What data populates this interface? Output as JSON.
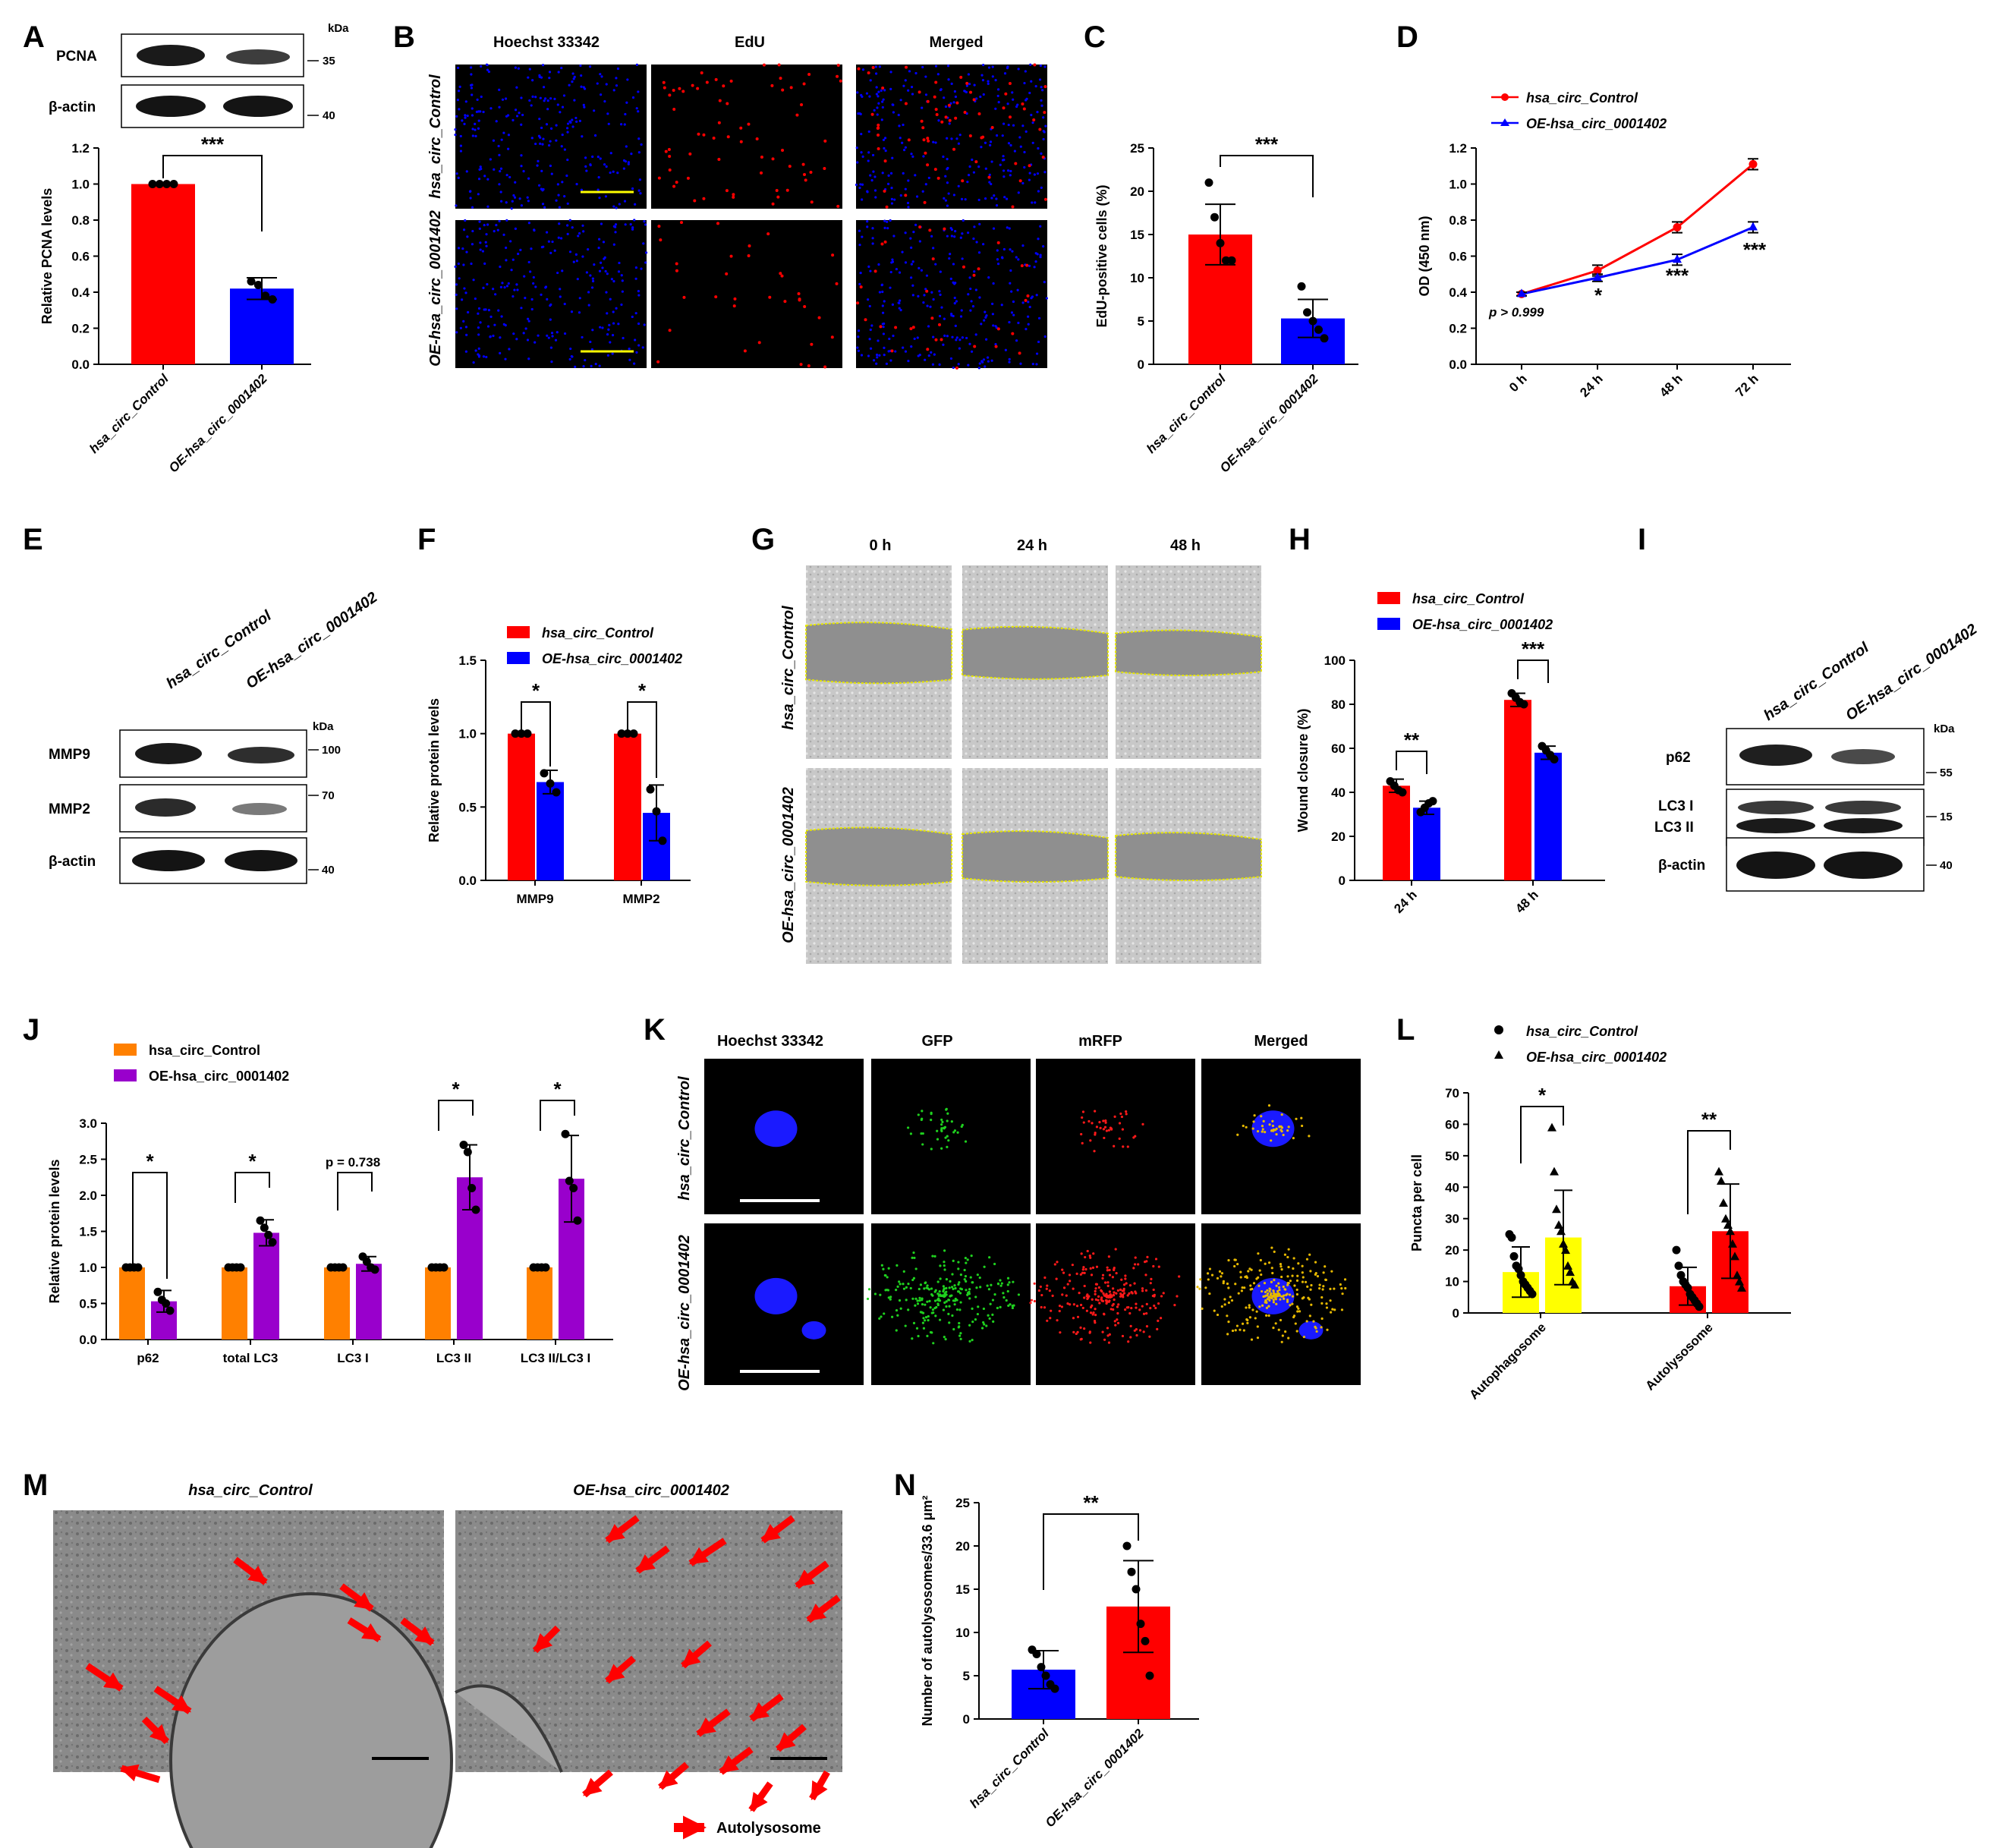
{
  "panel_labels": [
    "A",
    "B",
    "C",
    "D",
    "E",
    "F",
    "G",
    "H",
    "I",
    "J",
    "K",
    "L",
    "M",
    "N"
  ],
  "colors": {
    "control": "#ff0000",
    "oe": "#0000ff",
    "orange": "#ff8000",
    "purple": "#9900cc",
    "yellow": "#ffff00",
    "hoechst": "#0000ff",
    "edu": "#ff0000"
  },
  "blot_A": {
    "kda": "kDa",
    "bands": [
      {
        "label": "PCNA",
        "kda": "35"
      },
      {
        "label": "β-actin",
        "kda": "40"
      }
    ]
  },
  "blot_E": {
    "lanes": [
      "hsa_circ_Control",
      "OE-hsa_circ_0001402"
    ],
    "kda": "kDa",
    "bands": [
      {
        "label": "MMP9",
        "kda": "100"
      },
      {
        "label": "MMP2",
        "kda": "70"
      },
      {
        "label": "β-actin",
        "kda": "40"
      }
    ]
  },
  "blot_I": {
    "lanes": [
      "hsa_circ_Control",
      "OE-hsa_circ_0001402"
    ],
    "kda": "kDa",
    "bands": [
      {
        "label": "p62",
        "kda": "55"
      },
      {
        "label": "LC3 I",
        "kda": "15"
      },
      {
        "label": "LC3 II",
        "kda": ""
      },
      {
        "label": "β-actin",
        "kda": "40"
      }
    ]
  },
  "images_B": {
    "cols": [
      "Hoechst 33342",
      "EdU",
      "Merged"
    ],
    "rows": [
      "hsa_circ_Control",
      "OE-hsa_circ_0001402"
    ]
  },
  "images_G": {
    "cols": [
      "0 h",
      "24 h",
      "48 h"
    ],
    "rows": [
      "hsa_circ_Control",
      "OE-hsa_circ_0001402"
    ]
  },
  "images_K": {
    "cols": [
      "Hoechst 33342",
      "GFP",
      "mRFP",
      "Merged"
    ],
    "rows": [
      "hsa_circ_Control",
      "OE-hsa_circ_0001402"
    ]
  },
  "images_M": {
    "titles": [
      "hsa_circ_Control",
      "OE-hsa_circ_0001402"
    ],
    "legend": "Autolysosome"
  },
  "chart_data": [
    {
      "id": "A",
      "type": "bar",
      "categories": [
        "hsa_circ_Control",
        "OE-hsa_circ_0001402"
      ],
      "values": [
        1.0,
        0.42
      ],
      "errors": [
        0.0,
        0.06
      ],
      "points": [
        [
          1,
          1,
          1,
          1
        ],
        [
          0.46,
          0.44,
          0.38,
          0.36
        ]
      ],
      "ylabel": "Relative PCNA levels",
      "ylim": [
        0,
        1.2
      ],
      "yticks": [
        "0.0",
        "0.2",
        "0.4",
        "0.6",
        "0.8",
        "1.0",
        "1.2"
      ],
      "significance": [
        "***"
      ]
    },
    {
      "id": "C",
      "type": "bar",
      "categories": [
        "hsa_circ_Control",
        "OE-hsa_circ_0001402"
      ],
      "values": [
        15,
        5.3
      ],
      "errors": [
        3.5,
        2.2
      ],
      "points": [
        [
          21,
          17,
          14,
          12,
          12
        ],
        [
          9,
          6,
          5,
          4,
          3
        ]
      ],
      "ylabel": "EdU-positive cells (%)",
      "ylim": [
        0,
        25
      ],
      "yticks": [
        "0",
        "5",
        "10",
        "15",
        "20",
        "25"
      ],
      "significance": [
        "***"
      ]
    },
    {
      "id": "D",
      "type": "line",
      "x": [
        "0 h",
        "24 h",
        "48 h",
        "72 h"
      ],
      "series": [
        {
          "name": "hsa_circ_Control",
          "values": [
            0.39,
            0.52,
            0.76,
            1.11
          ],
          "errors": [
            0.01,
            0.03,
            0.03,
            0.03
          ]
        },
        {
          "name": "OE-hsa_circ_0001402",
          "values": [
            0.39,
            0.48,
            0.58,
            0.76
          ],
          "errors": [
            0.01,
            0.02,
            0.03,
            0.03
          ]
        }
      ],
      "ylabel": "OD (450 nm)",
      "ylim": [
        0,
        1.2
      ],
      "yticks": [
        "0.0",
        "0.2",
        "0.4",
        "0.6",
        "0.8",
        "1.0",
        "1.2"
      ],
      "annotations": [
        "p > 0.999",
        "*",
        "***",
        "***"
      ],
      "legend": "top-left"
    },
    {
      "id": "F",
      "type": "bar",
      "categories": [
        "MMP9",
        "MMP2"
      ],
      "series": [
        {
          "name": "hsa_circ_Control",
          "values": [
            1.0,
            1.0
          ],
          "errors": [
            0,
            0
          ]
        },
        {
          "name": "OE-hsa_circ_0001402",
          "values": [
            0.67,
            0.46
          ],
          "errors": [
            0.08,
            0.19
          ]
        }
      ],
      "ylabel": "Relative protein levels",
      "ylim": [
        0,
        1.5
      ],
      "yticks": [
        "0.0",
        "0.5",
        "1.0",
        "1.5"
      ],
      "significance": [
        "*",
        "*"
      ],
      "legend": "top"
    },
    {
      "id": "H",
      "type": "bar",
      "categories": [
        "24 h",
        "48 h"
      ],
      "series": [
        {
          "name": "hsa_circ_Control",
          "values": [
            43,
            82
          ],
          "errors": [
            3,
            3
          ]
        },
        {
          "name": "OE-hsa_circ_0001402",
          "values": [
            33,
            58
          ],
          "errors": [
            3,
            3
          ]
        }
      ],
      "ylabel": "Wound closure (%)",
      "ylim": [
        0,
        100
      ],
      "yticks": [
        "0",
        "20",
        "40",
        "60",
        "80",
        "100"
      ],
      "significance": [
        "**",
        "***"
      ],
      "legend": "top"
    },
    {
      "id": "J",
      "type": "bar",
      "categories": [
        "p62",
        "total LC3",
        "LC3 I",
        "LC3 II",
        "LC3 II/LC3 I"
      ],
      "series": [
        {
          "name": "hsa_circ_Control",
          "values": [
            1,
            1,
            1,
            1,
            1
          ],
          "errors": [
            0,
            0,
            0,
            0,
            0
          ]
        },
        {
          "name": "OE-hsa_circ_0001402",
          "values": [
            0.53,
            1.48,
            1.05,
            2.25,
            2.23
          ],
          "errors": [
            0.15,
            0.18,
            0.1,
            0.45,
            0.6
          ]
        }
      ],
      "ylabel": "Relative protein levels",
      "ylim": [
        0,
        3.0
      ],
      "yticks": [
        "0.0",
        "0.5",
        "1.0",
        "1.5",
        "2.0",
        "2.5",
        "3.0"
      ],
      "significance": [
        "*",
        "*",
        "p = 0.738",
        "*",
        "*"
      ],
      "legend": "top"
    },
    {
      "id": "L",
      "type": "bar",
      "categories": [
        "Autophagosome",
        "Autolysosome"
      ],
      "series": [
        {
          "name": "hsa_circ_Control",
          "values": [
            13,
            8.5
          ],
          "errors": [
            8,
            6
          ]
        },
        {
          "name": "OE-hsa_circ_0001402",
          "values": [
            24,
            26
          ],
          "errors": [
            15,
            15
          ]
        }
      ],
      "ylabel": "Puncta per cell",
      "ylim": [
        0,
        70
      ],
      "yticks": [
        "0",
        "10",
        "20",
        "30",
        "40",
        "50",
        "60",
        "70"
      ],
      "significance": [
        "*",
        "**"
      ],
      "legend": "top"
    },
    {
      "id": "N",
      "type": "bar",
      "categories": [
        "hsa_circ_Control",
        "OE-hsa_circ_0001402"
      ],
      "values": [
        5.7,
        13
      ],
      "errors": [
        2.2,
        5.3
      ],
      "points": [
        [
          8,
          7.5,
          6,
          5,
          4,
          3.5
        ],
        [
          20,
          17,
          15,
          11,
          9,
          5
        ]
      ],
      "ylabel": "Number of autolysosomes/33.6 μm²",
      "ylim": [
        0,
        25
      ],
      "yticks": [
        "0",
        "5",
        "10",
        "15",
        "20",
        "25"
      ],
      "significance": [
        "**"
      ]
    }
  ]
}
